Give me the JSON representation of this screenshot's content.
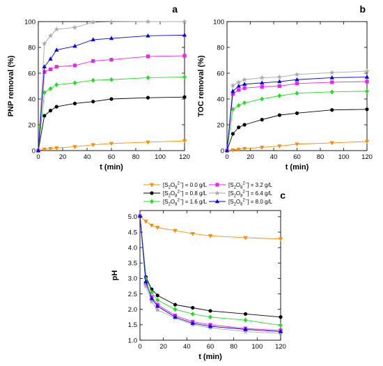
{
  "colors": {
    "d0.0": "#ff8c00",
    "d0.8": "#000000",
    "d1.6": "#22dd22",
    "d3.2": "#ee22ee",
    "d6.4": "#a8a8a8",
    "d8.0": "#0000ee"
  },
  "legend": [
    {
      "sid": "d0.0",
      "marker": "tri-down",
      "prefix": "[S",
      "sub": "2",
      "mid": "O",
      "sub2": "8",
      "sup": "2−",
      "suffix": "] = 0.0 g/L"
    },
    {
      "sid": "d3.2",
      "marker": "square",
      "prefix": "[S",
      "sub": "2",
      "mid": "O",
      "sub2": "8",
      "sup": "2−",
      "suffix": "] = 3.2 g/L"
    },
    {
      "sid": "d0.8",
      "marker": "circle",
      "prefix": "[S",
      "sub": "2",
      "mid": "O",
      "sub2": "8",
      "sup": "2−",
      "suffix": "] = 0.8 g/L"
    },
    {
      "sid": "d6.4",
      "marker": "star",
      "prefix": "[S",
      "sub": "2",
      "mid": "O",
      "sub2": "8",
      "sup": "2−",
      "suffix": "] = 6.4 g/L"
    },
    {
      "sid": "d1.6",
      "marker": "diamond",
      "prefix": "[S",
      "sub": "2",
      "mid": "O",
      "sub2": "8",
      "sup": "2−",
      "suffix": "] = 1.6 g/L"
    },
    {
      "sid": "d8.0",
      "marker": "tri-up",
      "prefix": "[S",
      "sub": "2",
      "mid": "O",
      "sub2": "8",
      "sup": "2−",
      "suffix": "] = 8.0 g/L"
    }
  ],
  "chart_data": [
    {
      "type": "line",
      "panel_label": "a",
      "xlabel": "t (min)",
      "ylabel": "PNP removal (%)",
      "xlim": [
        0,
        120
      ],
      "ylim": [
        0,
        100
      ],
      "xticks": [
        0,
        20,
        40,
        60,
        80,
        100,
        120
      ],
      "yticks": [
        0,
        20,
        40,
        60,
        80,
        100
      ],
      "series": [
        {
          "sid": "d0.0",
          "marker": "tri-down",
          "x": [
            0,
            5,
            10,
            15,
            30,
            45,
            60,
            90,
            120
          ],
          "y": [
            0,
            1,
            1.5,
            2,
            3,
            4.5,
            5.5,
            6.5,
            7.5
          ]
        },
        {
          "sid": "d0.8",
          "marker": "circle",
          "x": [
            0,
            5,
            10,
            15,
            30,
            45,
            60,
            90,
            120
          ],
          "y": [
            0,
            27,
            31,
            34,
            36.5,
            38,
            40,
            41,
            41.5
          ]
        },
        {
          "sid": "d1.6",
          "marker": "diamond",
          "x": [
            0,
            5,
            10,
            15,
            30,
            45,
            60,
            90,
            120
          ],
          "y": [
            0,
            45,
            48,
            51,
            52.5,
            54.5,
            55,
            56.5,
            57
          ]
        },
        {
          "sid": "d3.2",
          "marker": "square",
          "x": [
            0,
            5,
            10,
            15,
            30,
            45,
            60,
            90,
            120
          ],
          "y": [
            0,
            61,
            63,
            65,
            66,
            69.5,
            70.5,
            73,
            73.5
          ]
        },
        {
          "sid": "d6.4",
          "marker": "star",
          "x": [
            0,
            5,
            10,
            15,
            30,
            45,
            60,
            90,
            120
          ],
          "y": [
            0,
            83,
            89,
            94,
            95.5,
            99.5,
            99.8,
            100,
            100
          ]
        },
        {
          "sid": "d8.0",
          "marker": "tri-up",
          "x": [
            0,
            5,
            10,
            15,
            30,
            45,
            60,
            90,
            120
          ],
          "y": [
            0,
            65,
            71,
            78,
            81,
            86,
            87,
            89,
            89.5
          ]
        }
      ]
    },
    {
      "type": "line",
      "panel_label": "b",
      "xlabel": "t (min)",
      "ylabel": "TOC removal (%)",
      "xlim": [
        0,
        120
      ],
      "ylim": [
        0,
        100
      ],
      "xticks": [
        0,
        20,
        40,
        60,
        80,
        100,
        120
      ],
      "yticks": [
        0,
        20,
        40,
        60,
        80,
        100
      ],
      "series": [
        {
          "sid": "d0.0",
          "marker": "tri-down",
          "x": [
            0,
            5,
            10,
            15,
            30,
            45,
            60,
            90,
            120
          ],
          "y": [
            0,
            0.5,
            1,
            1.5,
            2.5,
            3.5,
            5,
            6,
            7
          ]
        },
        {
          "sid": "d0.8",
          "marker": "circle",
          "x": [
            0,
            5,
            10,
            15,
            30,
            45,
            60,
            90,
            120
          ],
          "y": [
            0,
            13,
            18,
            20,
            24,
            27.5,
            29,
            31.5,
            32
          ]
        },
        {
          "sid": "d1.6",
          "marker": "diamond",
          "x": [
            0,
            5,
            10,
            15,
            30,
            45,
            60,
            90,
            120
          ],
          "y": [
            0,
            32,
            35,
            37,
            40,
            42.5,
            44.5,
            45.5,
            46
          ]
        },
        {
          "sid": "d3.2",
          "marker": "square",
          "x": [
            0,
            5,
            10,
            15,
            30,
            45,
            60,
            90,
            120
          ],
          "y": [
            0,
            44,
            47,
            48.5,
            49.5,
            50,
            52,
            53,
            53.5
          ]
        },
        {
          "sid": "d6.4",
          "marker": "star",
          "x": [
            0,
            5,
            10,
            15,
            30,
            45,
            60,
            90,
            120
          ],
          "y": [
            0,
            50.5,
            53,
            55,
            56.5,
            57,
            59,
            60.5,
            61.5
          ]
        },
        {
          "sid": "d8.0",
          "marker": "tri-up",
          "x": [
            0,
            5,
            10,
            15,
            30,
            45,
            60,
            90,
            120
          ],
          "y": [
            0,
            46,
            50,
            51.5,
            52.5,
            53.5,
            55,
            56.5,
            57
          ]
        }
      ]
    },
    {
      "type": "line",
      "panel_label": "c",
      "xlabel": "t (min)",
      "ylabel": "pH",
      "xlim": [
        0,
        120
      ],
      "ylim": [
        1.0,
        5.2
      ],
      "xticks": [
        0,
        20,
        40,
        60,
        80,
        100,
        120
      ],
      "yticks": [
        "1.0",
        "1.5",
        "2.0",
        "2.5",
        "3.0",
        "3.5",
        "4.0",
        "4.5",
        "5.0"
      ],
      "series": [
        {
          "sid": "d0.0",
          "marker": "tri-down",
          "x": [
            0,
            5,
            10,
            15,
            30,
            45,
            60,
            90,
            120
          ],
          "y": [
            5.02,
            4.85,
            4.72,
            4.65,
            4.55,
            4.45,
            4.38,
            4.32,
            4.28
          ]
        },
        {
          "sid": "d0.8",
          "marker": "circle",
          "x": [
            0,
            5,
            10,
            15,
            30,
            45,
            60,
            90,
            120
          ],
          "y": [
            5.02,
            3.05,
            2.65,
            2.45,
            2.15,
            2.05,
            1.95,
            1.85,
            1.75
          ]
        },
        {
          "sid": "d1.6",
          "marker": "diamond",
          "x": [
            0,
            5,
            10,
            15,
            30,
            45,
            60,
            90,
            120
          ],
          "y": [
            5.02,
            3.0,
            2.55,
            2.3,
            2.0,
            1.85,
            1.75,
            1.65,
            1.48
          ]
        },
        {
          "sid": "d3.2",
          "marker": "square",
          "x": [
            0,
            5,
            10,
            15,
            30,
            45,
            60,
            90,
            120
          ],
          "y": [
            5.02,
            2.85,
            2.4,
            2.15,
            1.8,
            1.6,
            1.5,
            1.38,
            1.32
          ]
        },
        {
          "sid": "d6.4",
          "marker": "star",
          "x": [
            0,
            5,
            10,
            15,
            30,
            45,
            60,
            90,
            120
          ],
          "y": [
            5.02,
            2.75,
            2.25,
            1.98,
            1.72,
            1.5,
            1.4,
            1.28,
            1.22
          ]
        },
        {
          "sid": "d8.0",
          "marker": "tri-up",
          "x": [
            0,
            5,
            10,
            15,
            30,
            45,
            60,
            90,
            120
          ],
          "y": [
            5.02,
            2.9,
            2.35,
            2.1,
            1.75,
            1.55,
            1.45,
            1.35,
            1.28
          ]
        }
      ]
    }
  ]
}
